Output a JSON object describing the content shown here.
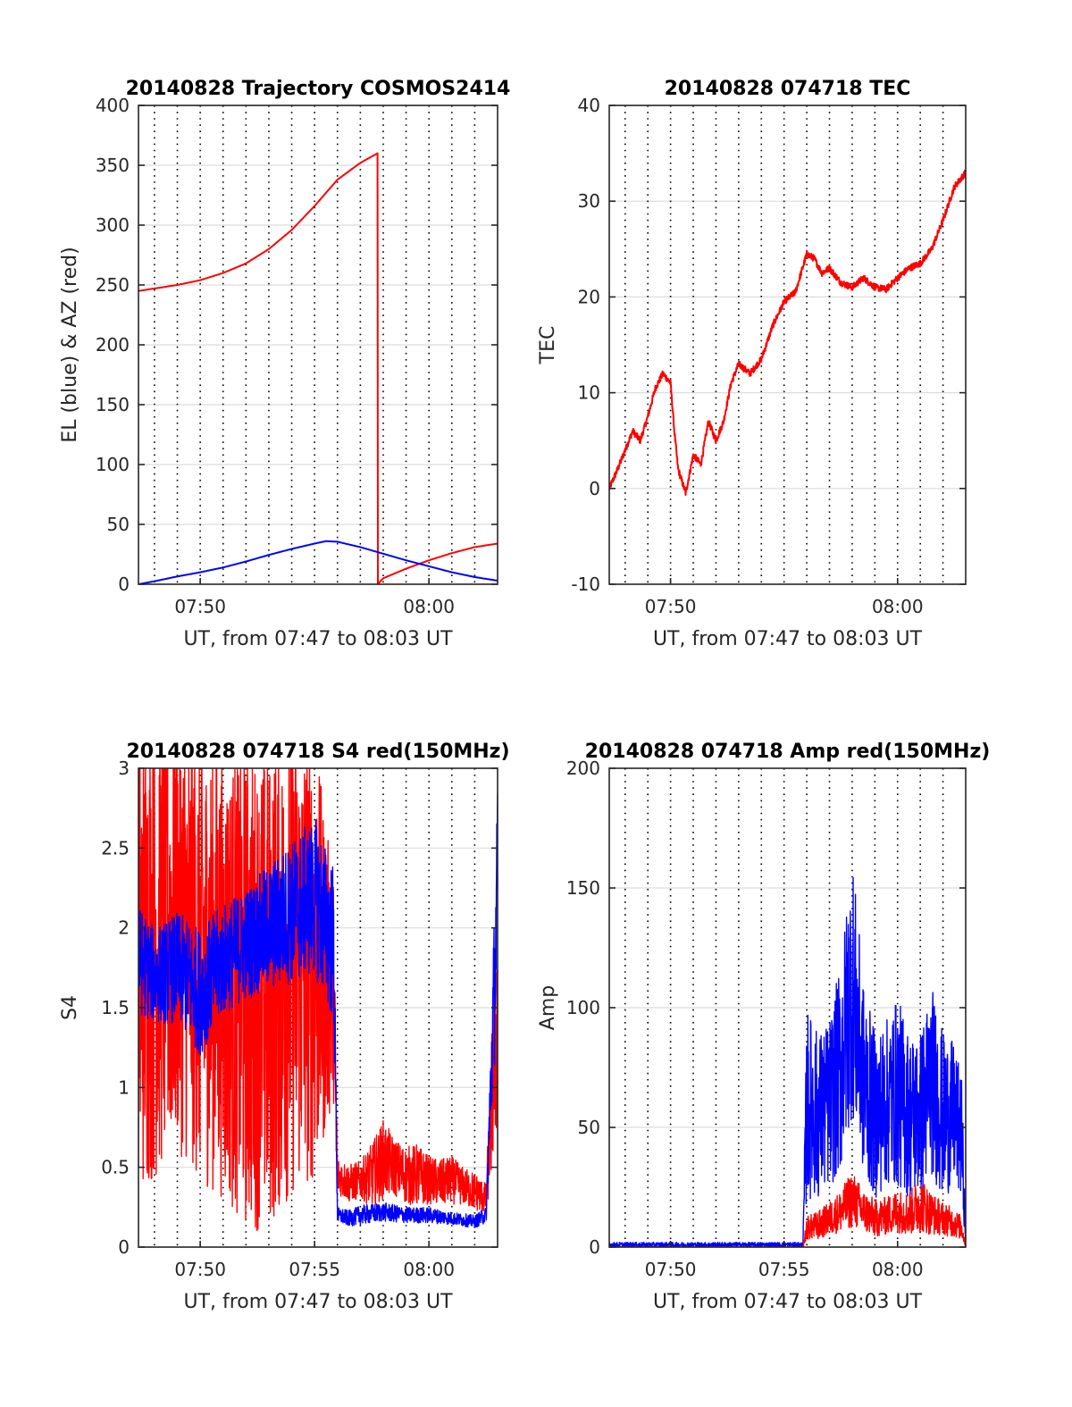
{
  "colors": {
    "az": "#ff0000",
    "el": "#0000ff",
    "red": "#ff0000",
    "blue": "#0000ff",
    "grid": "#dcdcdc",
    "axis": "#262626"
  },
  "chart_data": [
    {
      "id": "trajectory",
      "type": "line",
      "title": "20140828 Trajectory COSMOS2414",
      "xlabel": "UT, from 07:47 to 08:03 UT",
      "ylabel": "EL (blue) & AZ (red)",
      "xlim": [
        "07:47:18",
        "08:03:00"
      ],
      "ylim": [
        0,
        400
      ],
      "yticks": [
        0,
        50,
        100,
        150,
        200,
        250,
        300,
        350,
        400
      ],
      "ytick_labels": [
        "0",
        "50",
        "100",
        "150",
        "200",
        "250",
        "300",
        "350",
        "400"
      ],
      "xticks": [
        "07:50",
        "08:00"
      ],
      "xtick_labels": [
        "07:50",
        "08:00"
      ],
      "vgrid_dotted_minutes": [
        "07:48",
        "07:49",
        "07:50",
        "07:51",
        "07:52",
        "07:53",
        "07:54",
        "07:55",
        "07:56",
        "07:57",
        "07:58",
        "07:59",
        "08:00",
        "08:01",
        "08:02"
      ],
      "grid": true,
      "series": [
        {
          "color": "red",
          "x": [
            "07:47:18",
            "07:49:00",
            "07:50:00",
            "07:51:00",
            "07:52:00",
            "07:53:00",
            "07:54:00",
            "07:55:00",
            "07:56:00",
            "07:57:00",
            "07:57:45",
            "07:57:46",
            "07:58:00",
            "07:59:00",
            "08:00:00",
            "08:01:00",
            "08:02:00",
            "08:03:00"
          ],
          "y": [
            245,
            250,
            254,
            260,
            268,
            280,
            296,
            316,
            338,
            352,
            360,
            0,
            5,
            13,
            20,
            26,
            31,
            34
          ]
        },
        {
          "color": "blue",
          "x": [
            "07:47:18",
            "07:48:00",
            "07:49:00",
            "07:50:00",
            "07:51:00",
            "07:52:00",
            "07:53:00",
            "07:54:00",
            "07:55:00",
            "07:55:30",
            "07:56:00",
            "07:57:00",
            "07:58:00",
            "07:59:00",
            "08:00:00",
            "08:01:00",
            "08:02:00",
            "08:03:00"
          ],
          "y": [
            0,
            2.5,
            6.5,
            10,
            14,
            19,
            24.5,
            29.5,
            34,
            36,
            35.5,
            31,
            25.5,
            20,
            15,
            10,
            6,
            3
          ]
        }
      ]
    },
    {
      "id": "tec",
      "type": "line",
      "title": "20140828 074718 TEC",
      "xlabel": "UT, from 07:47 to 08:03 UT",
      "ylabel": "TEC",
      "xlim": [
        "07:47:18",
        "08:03:00"
      ],
      "ylim": [
        -10,
        40
      ],
      "yticks": [
        -10,
        0,
        10,
        20,
        30,
        40
      ],
      "ytick_labels": [
        "-10",
        "0",
        "10",
        "20",
        "30",
        "40"
      ],
      "xticks": [
        "07:50",
        "08:00"
      ],
      "xtick_labels": [
        "07:50",
        "08:00"
      ],
      "vgrid_dotted_minutes": [
        "07:48",
        "07:49",
        "07:50",
        "07:51",
        "07:52",
        "07:53",
        "07:54",
        "07:55",
        "07:56",
        "07:57",
        "07:58",
        "07:59",
        "08:00",
        "08:01",
        "08:02"
      ],
      "grid": true,
      "series": [
        {
          "color": "red",
          "x": [
            "07:47:18",
            "07:47:40",
            "07:48:00",
            "07:48:20",
            "07:48:40",
            "07:49:00",
            "07:49:20",
            "07:49:40",
            "07:50:00",
            "07:50:10",
            "07:50:20",
            "07:50:40",
            "07:51:00",
            "07:51:20",
            "07:51:40",
            "07:52:00",
            "07:52:20",
            "07:52:40",
            "07:53:00",
            "07:53:30",
            "07:54:00",
            "07:54:30",
            "07:55:00",
            "07:55:30",
            "07:56:00",
            "07:56:20",
            "07:56:40",
            "07:57:00",
            "07:57:30",
            "07:58:00",
            "07:58:30",
            "07:59:00",
            "07:59:30",
            "08:00:00",
            "08:00:30",
            "08:01:00",
            "08:01:30",
            "08:02:00",
            "08:02:30",
            "08:03:00"
          ],
          "y": [
            0,
            2,
            4,
            6,
            5,
            7.5,
            10.5,
            12,
            11,
            6,
            2,
            -0.5,
            3.5,
            2.5,
            7,
            5,
            7,
            11,
            13,
            12,
            13.5,
            17,
            19.5,
            20.5,
            24.5,
            24,
            22.5,
            23,
            21.5,
            21,
            22,
            21,
            20.8,
            22,
            23,
            23.5,
            25,
            28,
            31.5,
            33
          ]
        }
      ]
    },
    {
      "id": "s4",
      "type": "line",
      "title": "20140828 074718 S4 red(150MHz)",
      "xlabel": "UT, from 07:47 to 08:03 UT",
      "ylabel": "S4",
      "xlim": [
        "07:47:18",
        "08:03:00"
      ],
      "ylim": [
        0,
        3
      ],
      "yticks": [
        0,
        0.5,
        1,
        1.5,
        2,
        2.5,
        3
      ],
      "ytick_labels": [
        "0",
        "0.5",
        "1",
        "1.5",
        "2",
        "2.5",
        "3"
      ],
      "xticks": [
        "07:50",
        "07:55",
        "08:00"
      ],
      "xtick_labels": [
        "07:50",
        "07:55",
        "08:00"
      ],
      "vgrid_dotted_minutes": [
        "07:48",
        "07:49",
        "07:50",
        "07:51",
        "07:52",
        "07:53",
        "07:54",
        "07:55",
        "07:56",
        "07:57",
        "07:58",
        "07:59",
        "08:00",
        "08:01",
        "08:02"
      ],
      "grid": true,
      "series": [
        {
          "color": "red",
          "style": "noisy",
          "x": [
            "07:47:18",
            "07:48:00",
            "07:49:00",
            "07:50:00",
            "07:51:00",
            "07:52:00",
            "07:53:00",
            "07:54:00",
            "07:55:00",
            "07:55:50",
            "07:56:00",
            "07:56:30",
            "07:57:00",
            "07:57:30",
            "07:58:00",
            "07:58:30",
            "07:59:00",
            "07:59:30",
            "08:00:00",
            "08:00:30",
            "08:01:00",
            "08:01:30",
            "08:02:00",
            "08:02:30",
            "08:03:00"
          ],
          "y": [
            1.8,
            1.9,
            2.0,
            1.8,
            1.7,
            1.6,
            1.6,
            1.8,
            1.8,
            1.6,
            0.45,
            0.4,
            0.42,
            0.45,
            0.55,
            0.5,
            0.45,
            0.45,
            0.42,
            0.4,
            0.42,
            0.38,
            0.35,
            0.3,
            1.5
          ],
          "amp": [
            1.5,
            1.5,
            1.4,
            1.4,
            1.4,
            1.5,
            1.5,
            1.5,
            1.4,
            0.7,
            0.12,
            0.12,
            0.12,
            0.2,
            0.25,
            0.18,
            0.18,
            0.2,
            0.15,
            0.15,
            0.15,
            0.12,
            0.12,
            0.1,
            0.8
          ]
        },
        {
          "color": "blue",
          "style": "noisy",
          "x": [
            "07:47:18",
            "07:48:00",
            "07:49:00",
            "07:50:00",
            "07:51:00",
            "07:52:00",
            "07:53:00",
            "07:54:00",
            "07:55:00",
            "07:55:50",
            "07:56:00",
            "07:56:30",
            "07:57:00",
            "07:58:00",
            "07:59:00",
            "08:00:00",
            "08:01:00",
            "08:02:00",
            "08:02:30",
            "08:03:00"
          ],
          "y": [
            1.8,
            1.7,
            1.75,
            1.6,
            1.8,
            1.9,
            2.0,
            2.1,
            2.2,
            1.9,
            0.2,
            0.18,
            0.2,
            0.22,
            0.2,
            0.2,
            0.18,
            0.16,
            0.2,
            2.2
          ],
          "amp": [
            0.35,
            0.3,
            0.35,
            0.4,
            0.35,
            0.35,
            0.4,
            0.45,
            0.5,
            0.5,
            0.05,
            0.05,
            0.06,
            0.06,
            0.05,
            0.05,
            0.04,
            0.04,
            0.05,
            0.7
          ]
        }
      ]
    },
    {
      "id": "amp",
      "type": "line",
      "title": "20140828 074718 Amp red(150MHz)",
      "xlabel": "UT, from 07:47 to 08:03 UT",
      "ylabel": "Amp",
      "xlim": [
        "07:47:18",
        "08:03:00"
      ],
      "ylim": [
        0,
        200
      ],
      "yticks": [
        0,
        50,
        100,
        150,
        200
      ],
      "ytick_labels": [
        "0",
        "50",
        "100",
        "150",
        "200"
      ],
      "xticks": [
        "07:50",
        "07:55",
        "08:00"
      ],
      "xtick_labels": [
        "07:50",
        "07:55",
        "08:00"
      ],
      "vgrid_dotted_minutes": [
        "07:48",
        "07:49",
        "07:50",
        "07:51",
        "07:52",
        "07:53",
        "07:54",
        "07:55",
        "07:56",
        "07:57",
        "07:58",
        "07:59",
        "08:00",
        "08:01",
        "08:02"
      ],
      "grid": true,
      "series": [
        {
          "color": "blue",
          "style": "noisy",
          "x": [
            "07:47:18",
            "07:50:00",
            "07:55:00",
            "07:55:50",
            "07:56:00",
            "07:56:30",
            "07:57:00",
            "07:57:30",
            "07:58:00",
            "07:58:30",
            "07:59:00",
            "07:59:30",
            "08:00:00",
            "08:00:30",
            "08:01:00",
            "08:01:30",
            "08:02:00",
            "08:02:30",
            "08:02:50",
            "08:03:00"
          ],
          "y": [
            1,
            1,
            1,
            1,
            60,
            55,
            60,
            75,
            110,
            70,
            55,
            60,
            65,
            55,
            55,
            70,
            55,
            55,
            45,
            2
          ],
          "amp": [
            1,
            1,
            1,
            1,
            40,
            35,
            35,
            45,
            55,
            40,
            35,
            35,
            40,
            35,
            35,
            40,
            35,
            30,
            25,
            1
          ]
        },
        {
          "color": "red",
          "style": "noisy",
          "x": [
            "07:47:18",
            "07:55:50",
            "07:56:00",
            "07:56:30",
            "07:57:00",
            "07:57:30",
            "07:58:00",
            "07:58:30",
            "07:59:00",
            "07:59:30",
            "08:00:00",
            "08:00:30",
            "08:01:00",
            "08:01:30",
            "08:02:00",
            "08:02:30",
            "08:02:50",
            "08:03:00"
          ],
          "y": [
            0,
            0,
            8,
            9,
            12,
            15,
            20,
            15,
            12,
            13,
            15,
            14,
            18,
            14,
            12,
            10,
            8,
            0
          ],
          "amp": [
            0,
            0,
            5,
            6,
            7,
            9,
            12,
            9,
            8,
            8,
            9,
            9,
            12,
            9,
            7,
            6,
            5,
            0
          ]
        }
      ]
    }
  ]
}
